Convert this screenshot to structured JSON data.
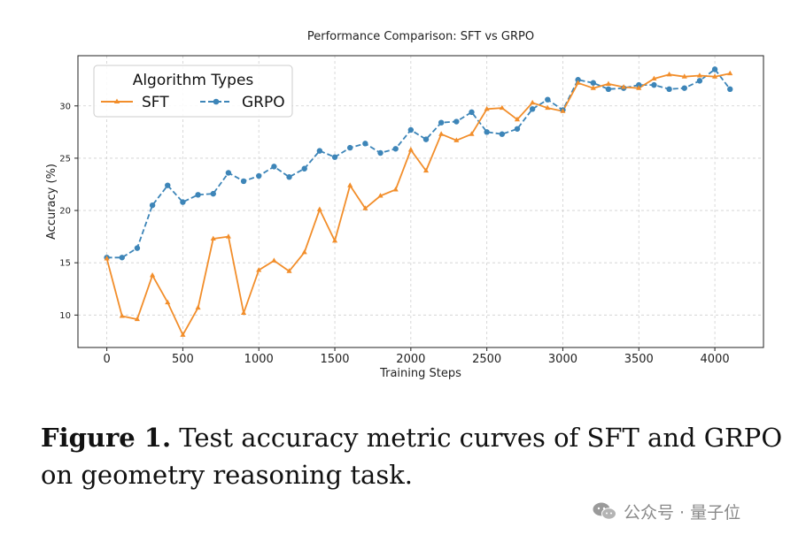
{
  "chart_data": {
    "type": "line",
    "title": "Performance Comparison: SFT vs GRPO",
    "xlabel": "Training Steps",
    "ylabel": "Accuracy (%)",
    "xlim": [
      -190,
      4320
    ],
    "ylim": [
      6.9,
      34.8
    ],
    "xticks": [
      0,
      500,
      1000,
      1500,
      2000,
      2500,
      3000,
      3500,
      4000
    ],
    "yticks": [
      10,
      15,
      20,
      25,
      30
    ],
    "grid": true,
    "legend": {
      "title": "Algorithm Types",
      "placement": "top-left"
    },
    "x": [
      0,
      100,
      200,
      300,
      400,
      500,
      600,
      700,
      800,
      900,
      1000,
      1100,
      1200,
      1300,
      1400,
      1500,
      1600,
      1700,
      1800,
      1900,
      2000,
      2100,
      2200,
      2300,
      2400,
      2500,
      2600,
      2700,
      2800,
      2900,
      3000,
      3100,
      3200,
      3300,
      3400,
      3500,
      3600,
      3700,
      3800,
      3900,
      4000,
      4100
    ],
    "series": [
      {
        "name": "SFT",
        "color": "#f28e2b",
        "marker": "triangle",
        "linestyle": "solid",
        "values": [
          15.4,
          9.9,
          9.6,
          13.8,
          11.2,
          8.1,
          10.7,
          17.3,
          17.5,
          10.2,
          14.3,
          15.2,
          14.2,
          16.0,
          20.1,
          17.1,
          22.4,
          20.2,
          21.4,
          22.0,
          25.8,
          23.8,
          27.3,
          26.7,
          27.3,
          29.7,
          29.8,
          28.7,
          30.3,
          29.8,
          29.5,
          32.2,
          31.7,
          32.1,
          31.8,
          31.7,
          32.6,
          33.0,
          32.8,
          32.9,
          32.8,
          33.1
        ]
      },
      {
        "name": "GRPO",
        "color": "#3d85b8",
        "marker": "circle",
        "linestyle": "dashed",
        "values": [
          15.5,
          15.5,
          16.4,
          20.5,
          22.4,
          20.8,
          21.5,
          21.6,
          23.6,
          22.8,
          23.3,
          24.2,
          23.2,
          24.0,
          25.7,
          25.1,
          26.0,
          26.4,
          25.5,
          25.9,
          27.7,
          26.8,
          28.4,
          28.5,
          29.4,
          27.5,
          27.3,
          27.8,
          29.7,
          30.6,
          29.6,
          32.5,
          32.2,
          31.6,
          31.7,
          32.0,
          32.0,
          31.6,
          31.7,
          32.4,
          33.5,
          31.6
        ]
      }
    ]
  },
  "caption": {
    "label": "Figure 1.",
    "text": " Test accuracy metric curves of SFT and GRPO on geometry reasoning task."
  },
  "watermark": {
    "text": "公众号 · 量子位",
    "icon": "wechat-logo"
  }
}
